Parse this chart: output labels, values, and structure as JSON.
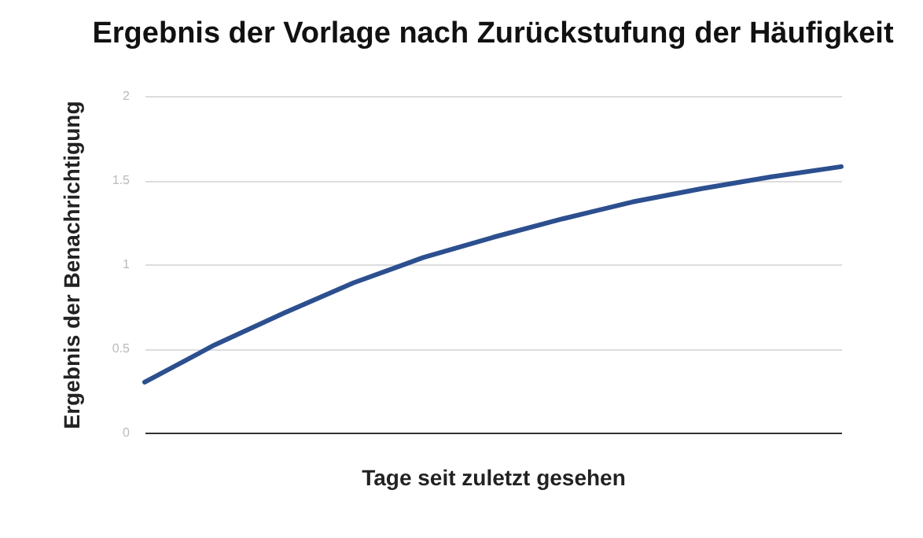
{
  "chart_data": {
    "type": "line",
    "title": "Ergebnis der Vorlage nach Zurückstufung der Häufigkeit",
    "xlabel": "Tage seit zuletzt gesehen",
    "ylabel": "Ergebnis der Benachrichtigung",
    "categories": [
      null,
      null,
      null,
      null,
      null,
      null,
      null,
      null,
      null,
      null,
      null
    ],
    "series": [
      {
        "color": "#2c4f8f",
        "values": [
          0.3,
          0.52,
          0.71,
          0.89,
          1.04,
          1.16,
          1.27,
          1.37,
          1.45,
          1.52,
          1.58
        ]
      }
    ],
    "ylim": [
      0,
      2
    ],
    "yticks": [
      0,
      0.5,
      1,
      1.5,
      2
    ],
    "grid": "y",
    "tick_labels": "y",
    "legend": false,
    "marker": "none",
    "line_style": "solid"
  }
}
